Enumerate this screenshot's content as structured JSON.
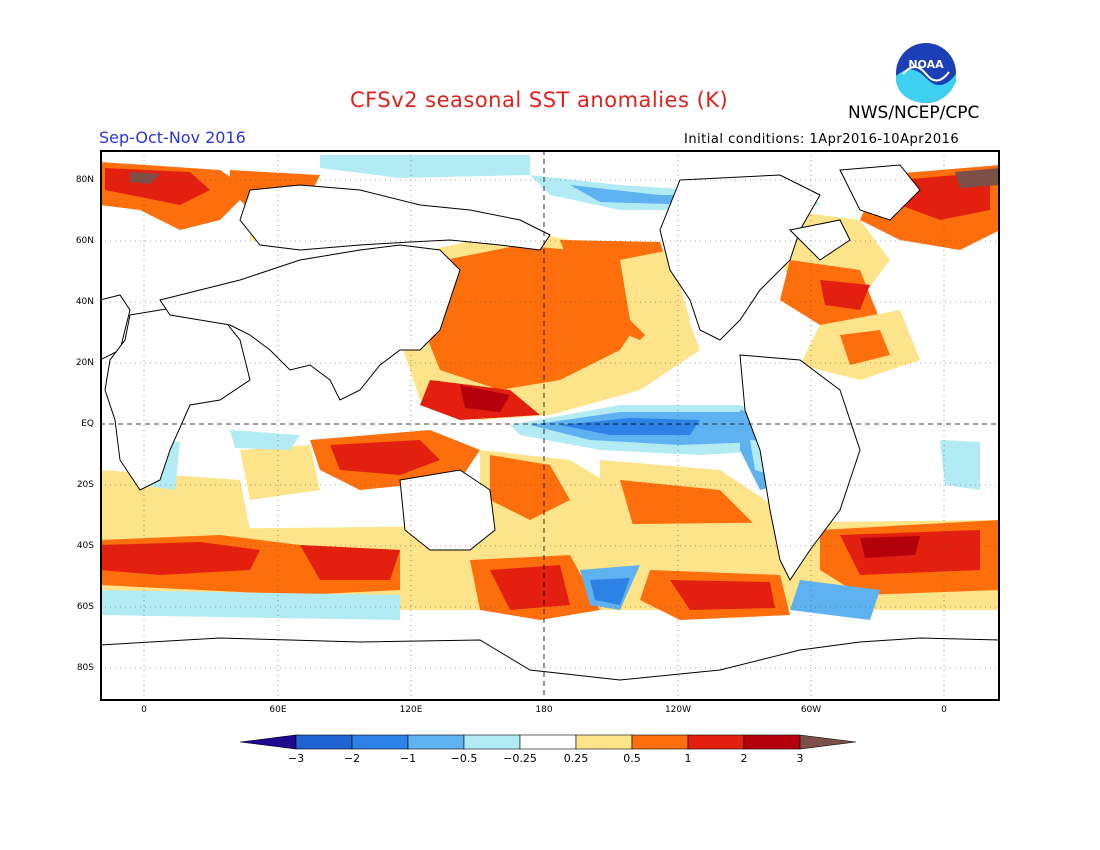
{
  "header": {
    "title": "CFSv2 seasonal SST anomalies (K)",
    "org": "NWS/NCEP/CPC",
    "season": "Sep-Oct-Nov 2016",
    "initial_conditions": "Initial conditions: 1Apr2016-10Apr2016",
    "logo_text": "NOAA"
  },
  "axes": {
    "lat_labels": [
      "80N",
      "60N",
      "40N",
      "20N",
      "EQ",
      "20S",
      "40S",
      "60S",
      "80S"
    ],
    "lon_labels": [
      "0",
      "60E",
      "120E",
      "180",
      "120W",
      "60W",
      "0"
    ]
  },
  "colorbar": {
    "labels": [
      "-3",
      "-2",
      "-1",
      "-0.5",
      "-0.25",
      "0.25",
      "0.5",
      "1",
      "2",
      "3"
    ],
    "colors": [
      "#1e0a8c",
      "#1f64d2",
      "#2d82e6",
      "#5fb2f0",
      "#b3ebf5",
      "#ffffff",
      "#fde389",
      "#fd6f0d",
      "#e3200f",
      "#b4000b",
      "#7c5047"
    ]
  },
  "chart_data": {
    "type": "heatmap",
    "variable": "SST anomaly",
    "units": "K",
    "levels": [
      -3,
      -2,
      -1,
      -0.5,
      -0.25,
      0.25,
      0.5,
      1,
      2,
      3
    ],
    "lat_range": [
      -90,
      90
    ],
    "lon_range": [
      -20,
      380
    ]
  }
}
